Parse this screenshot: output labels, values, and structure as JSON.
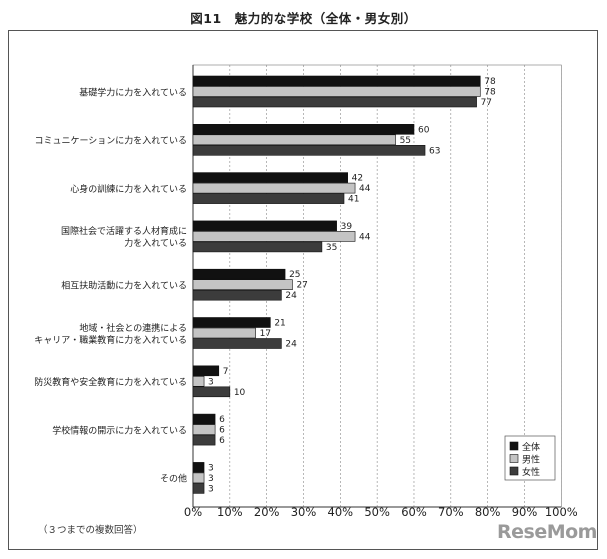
{
  "title": "図11　魅力的な学校（全体・男女別）",
  "footnote": "（３つまでの複数回答）",
  "watermark": "ReseMom",
  "colors": {
    "全体": "#111111",
    "男性": "#c4c4c4",
    "女性": "#3c3c3c"
  },
  "chart_data": {
    "type": "bar",
    "orientation": "horizontal",
    "categories": [
      [
        "基礎学力に力を入れている"
      ],
      [
        "コミュニケーションに力を入れている"
      ],
      [
        "心身の訓練に力を入れている"
      ],
      [
        "国際社会で活躍する人材育成に",
        "力を入れている"
      ],
      [
        "相互扶助活動に力を入れている"
      ],
      [
        "地域・社会との連携による",
        "キャリア・職業教育に力を入れている"
      ],
      [
        "防災教育や安全教育に力を入れている"
      ],
      [
        "学校情報の開示に力を入れている"
      ],
      [
        "その他"
      ]
    ],
    "series": [
      {
        "name": "全体",
        "values": [
          78,
          60,
          42,
          39,
          25,
          21,
          7,
          6,
          3
        ]
      },
      {
        "name": "男性",
        "values": [
          78,
          55,
          44,
          44,
          27,
          17,
          3,
          6,
          3
        ]
      },
      {
        "name": "女性",
        "values": [
          77,
          63,
          41,
          35,
          24,
          24,
          10,
          6,
          3
        ]
      }
    ],
    "x_ticks": [
      "0%",
      "10%",
      "20%",
      "30%",
      "40%",
      "50%",
      "60%",
      "70%",
      "80%",
      "90%",
      "100%"
    ],
    "xlim": [
      0,
      100
    ],
    "grid": true,
    "legend": "bottom-right"
  }
}
